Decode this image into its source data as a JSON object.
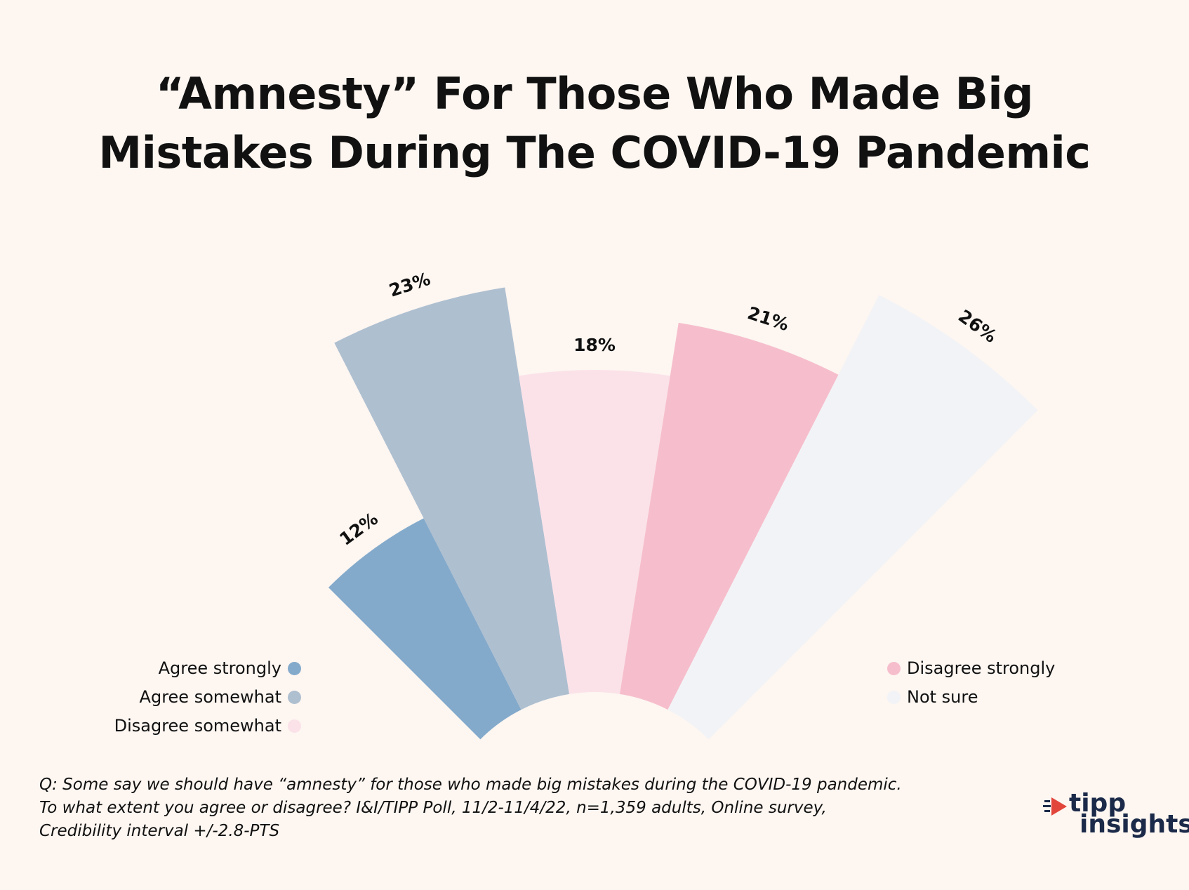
{
  "title_lines": [
    "“Amnesty” For Those Who Made Big",
    "Mistakes During The COVID-19 Pandemic"
  ],
  "chart_data": {
    "type": "radial-bar",
    "title": "“Amnesty” For Those Who Made Big Mistakes During The COVID-19 Pandemic",
    "categories": [
      "Agree strongly",
      "Agree somewhat",
      "Disagree somewhat",
      "Disagree strongly",
      "Not sure"
    ],
    "values": [
      12,
      23,
      18,
      21,
      26
    ],
    "value_labels": [
      "12%",
      "23%",
      "18%",
      "21%",
      "26%"
    ],
    "colors": [
      "#84AACB",
      "#AEBFD0",
      "#FBE2E9",
      "#F6BECC",
      "#F2F3F7"
    ],
    "legend_left": [
      "Agree strongly",
      "Agree somewhat",
      "Disagree somewhat"
    ],
    "legend_right": [
      "Disagree strongly",
      "Not sure"
    ]
  },
  "footnote": [
    "Q: Some say we should have “amnesty” for those who made big mistakes during the COVID-19 pandemic.",
    "To what extent you agree or disagree? I&I/TIPP Poll, 11/2-11/4/22, n=1,359 adults, Online survey,",
    "Credibility interval +/-2.8-PTS"
  ],
  "logo": {
    "line1": "tipp",
    "line2": "insights",
    "accent_color": "#E2453A",
    "text_color": "#1B2A49"
  }
}
